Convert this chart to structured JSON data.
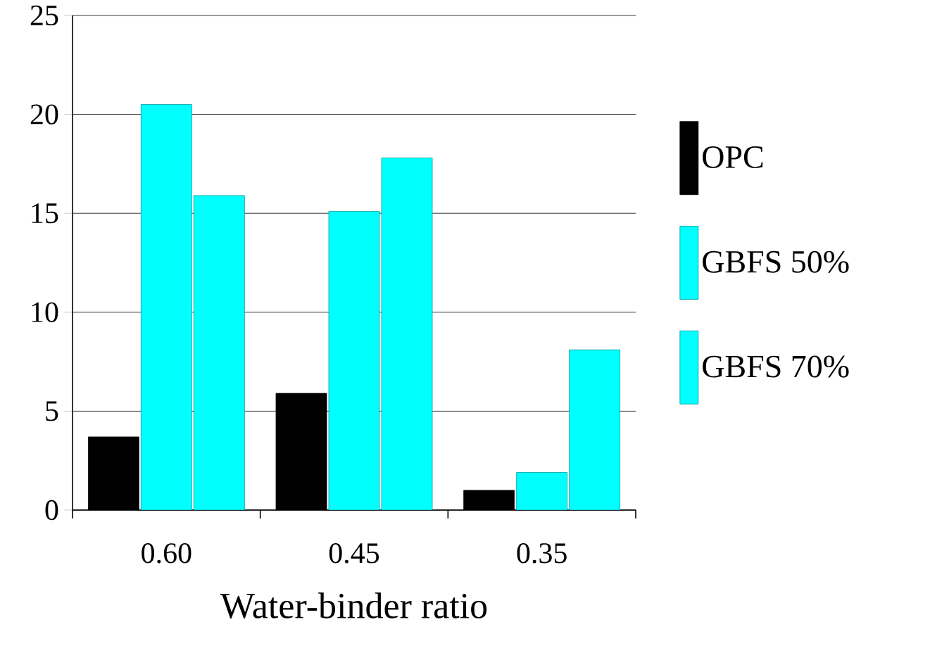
{
  "chart_data": {
    "type": "bar",
    "xlabel": "Water-binder ratio",
    "categories": [
      "0.60",
      "0.45",
      "0.35"
    ],
    "series": [
      {
        "name": "OPC",
        "color": "#000000",
        "values": [
          3.7,
          5.9,
          1.0
        ]
      },
      {
        "name": "GBFS 50%",
        "color": "#00ffff",
        "values": [
          20.5,
          15.1,
          1.9
        ]
      },
      {
        "name": "GBFS 70%",
        "color": "#00ffff",
        "values": [
          15.9,
          17.8,
          8.1
        ]
      }
    ],
    "ylim": [
      0,
      25
    ],
    "yticks": [
      0,
      5,
      10,
      15,
      20,
      25
    ],
    "grid": "y",
    "legend": "right"
  }
}
